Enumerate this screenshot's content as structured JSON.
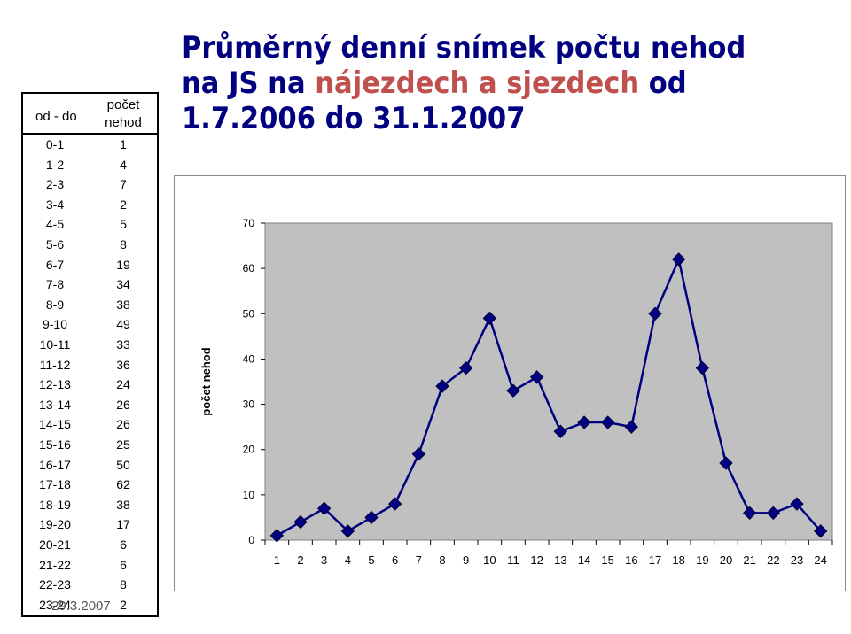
{
  "title": {
    "part1": "Průměrný denní snímek počtu nehod na JS na ",
    "highlight": "nájezdech a  sjezdech",
    "part2": " od 1.7.2006 do 31.1.2007"
  },
  "table": {
    "header_interval": "od - do",
    "header_count": "počet nehod",
    "rows": [
      {
        "interval": "0-1",
        "count": "1"
      },
      {
        "interval": "1-2",
        "count": "4"
      },
      {
        "interval": "2-3",
        "count": "7"
      },
      {
        "interval": "3-4",
        "count": "2"
      },
      {
        "interval": "4-5",
        "count": "5"
      },
      {
        "interval": "5-6",
        "count": "8"
      },
      {
        "interval": "6-7",
        "count": "19"
      },
      {
        "interval": "7-8",
        "count": "34"
      },
      {
        "interval": "8-9",
        "count": "38"
      },
      {
        "interval": "9-10",
        "count": "49"
      },
      {
        "interval": "10-11",
        "count": "33"
      },
      {
        "interval": "11-12",
        "count": "36"
      },
      {
        "interval": "12-13",
        "count": "24"
      },
      {
        "interval": "13-14",
        "count": "26"
      },
      {
        "interval": "14-15",
        "count": "26"
      },
      {
        "interval": "15-16",
        "count": "25"
      },
      {
        "interval": "16-17",
        "count": "50"
      },
      {
        "interval": "17-18",
        "count": "62"
      },
      {
        "interval": "18-19",
        "count": "38"
      },
      {
        "interval": "19-20",
        "count": "17"
      },
      {
        "interval": "20-21",
        "count": "6"
      },
      {
        "interval": "21-22",
        "count": "6"
      },
      {
        "interval": "22-23",
        "count": "8"
      },
      {
        "interval": "23-24",
        "count": "2"
      }
    ]
  },
  "footer_date": "29.3.2007",
  "colors": {
    "title": "#000080",
    "highlight": "#c0504d",
    "line": "#000080",
    "plot_bg": "#c0c0c0"
  },
  "chart_data": {
    "type": "line",
    "categories": [
      "1",
      "2",
      "3",
      "4",
      "5",
      "6",
      "7",
      "8",
      "9",
      "10",
      "11",
      "12",
      "13",
      "14",
      "15",
      "16",
      "17",
      "18",
      "19",
      "20",
      "21",
      "22",
      "23",
      "24"
    ],
    "series": [
      {
        "values": [
          1,
          4,
          7,
          2,
          5,
          8,
          19,
          34,
          38,
          49,
          33,
          36,
          24,
          26,
          26,
          25,
          50,
          62,
          38,
          17,
          6,
          6,
          8,
          2
        ]
      }
    ],
    "ylabel": "počet nehod",
    "xlabel": "",
    "ylim": [
      0,
      70
    ],
    "yticks": [
      "0",
      "10",
      "20",
      "30",
      "40",
      "50",
      "60",
      "70"
    ],
    "grid": false,
    "legend": "none",
    "marker": "diamond"
  }
}
